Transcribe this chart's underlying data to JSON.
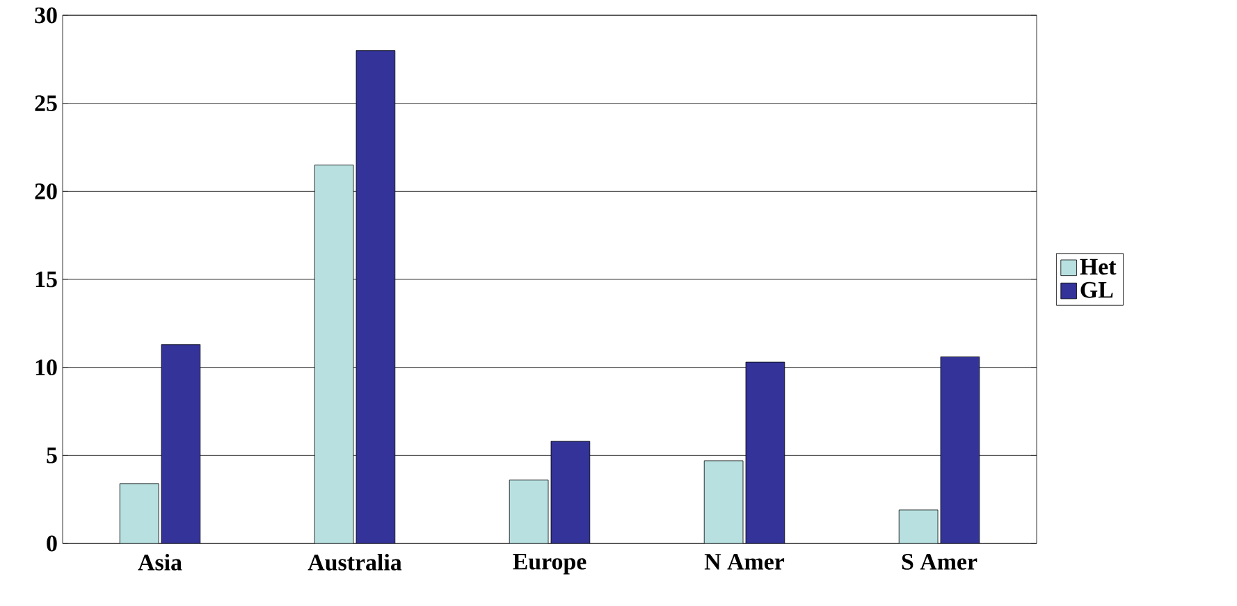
{
  "chart_data": {
    "type": "bar",
    "categories": [
      "Asia",
      "Australia",
      "Europe",
      "N Amer",
      "S Amer"
    ],
    "series": [
      {
        "name": "Het",
        "color": "#b8e0e0",
        "values": [
          3.4,
          21.5,
          3.6,
          4.7,
          1.9
        ]
      },
      {
        "name": "GL",
        "color": "#333399",
        "values": [
          11.3,
          28,
          5.8,
          10.3,
          10.6
        ]
      }
    ],
    "ylim": [
      0,
      30
    ],
    "yticks": [
      0,
      5,
      10,
      15,
      20,
      25,
      30
    ],
    "grid": "y",
    "legend": "right"
  }
}
